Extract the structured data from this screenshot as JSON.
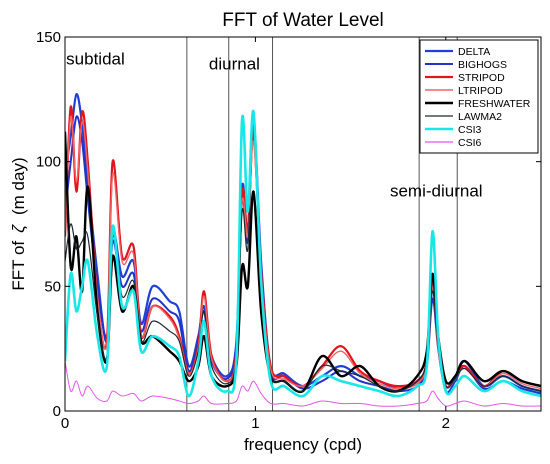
{
  "chart_data": {
    "type": "line",
    "title": "FFT of Water Level",
    "xlabel": "frequency (cpd)",
    "ylabel_prefix": "FFT of",
    "ylabel_symbol": "ζ",
    "ylabel_unit": "(m day)",
    "xlim": [
      0,
      2.5
    ],
    "ylim": [
      0,
      150
    ],
    "xticks": [
      {
        "value": 0,
        "label": "0"
      },
      {
        "value": 1,
        "label": "1"
      },
      {
        "value": 2,
        "label": "2"
      }
    ],
    "yticks": [
      {
        "value": 0,
        "label": "0"
      },
      {
        "value": 50,
        "label": "50"
      },
      {
        "value": 100,
        "label": "100"
      },
      {
        "value": 150,
        "label": "150"
      }
    ],
    "grid": false,
    "legend_position": "top-right",
    "band_lines": [
      0.64,
      0.86,
      1.09,
      1.86,
      2.06
    ],
    "region_labels": [
      {
        "text": "subtidal",
        "x": 0.16,
        "y": 139
      },
      {
        "text": "diurnal",
        "x": 0.89,
        "y": 137
      },
      {
        "text": "semi-diurnal",
        "x": 1.95,
        "y": 86
      }
    ],
    "series": [
      {
        "name": "DELTA",
        "color": "#1f3fd6",
        "width": 2.2,
        "x": [
          0,
          0.03,
          0.06,
          0.09,
          0.12,
          0.17,
          0.22,
          0.25,
          0.3,
          0.36,
          0.4,
          0.46,
          0.55,
          0.6,
          0.65,
          0.7,
          0.73,
          0.77,
          0.85,
          0.9,
          0.93,
          0.96,
          0.99,
          1.03,
          1.08,
          1.15,
          1.25,
          1.35,
          1.45,
          1.55,
          1.65,
          1.75,
          1.85,
          1.9,
          1.93,
          1.96,
          2.0,
          2.05,
          2.1,
          2.2,
          2.3,
          2.4,
          2.5
        ],
        "y": [
          96,
          110,
          127,
          115,
          92,
          55,
          28,
          72,
          54,
          60,
          35,
          50,
          44,
          40,
          18,
          30,
          42,
          22,
          14,
          28,
          90,
          72,
          118,
          60,
          18,
          15,
          10,
          14,
          18,
          14,
          12,
          9,
          12,
          20,
          50,
          28,
          10,
          14,
          20,
          10,
          14,
          10,
          8
        ]
      },
      {
        "name": "BIGHOGS",
        "color": "#2233c8",
        "width": 2.0,
        "x": [
          0,
          0.03,
          0.06,
          0.09,
          0.12,
          0.17,
          0.22,
          0.25,
          0.3,
          0.36,
          0.4,
          0.46,
          0.55,
          0.6,
          0.65,
          0.7,
          0.73,
          0.77,
          0.85,
          0.9,
          0.93,
          0.96,
          0.99,
          1.03,
          1.08,
          1.15,
          1.25,
          1.35,
          1.45,
          1.55,
          1.65,
          1.75,
          1.85,
          1.9,
          1.93,
          1.96,
          2.0,
          2.05,
          2.1,
          2.2,
          2.3,
          2.4,
          2.5
        ],
        "y": [
          80,
          100,
          118,
          108,
          85,
          50,
          30,
          68,
          50,
          55,
          32,
          45,
          40,
          36,
          16,
          28,
          40,
          20,
          13,
          26,
          85,
          68,
          115,
          55,
          16,
          14,
          9,
          12,
          16,
          12,
          10,
          8,
          10,
          18,
          45,
          25,
          8,
          12,
          18,
          9,
          12,
          9,
          7
        ]
      },
      {
        "name": "STRIPOD",
        "color": "#e3141b",
        "width": 2.2,
        "x": [
          0,
          0.03,
          0.06,
          0.09,
          0.12,
          0.17,
          0.22,
          0.25,
          0.3,
          0.36,
          0.4,
          0.46,
          0.55,
          0.6,
          0.65,
          0.7,
          0.73,
          0.77,
          0.85,
          0.9,
          0.93,
          0.96,
          0.99,
          1.03,
          1.08,
          1.15,
          1.25,
          1.35,
          1.45,
          1.55,
          1.65,
          1.75,
          1.85,
          1.9,
          1.93,
          1.96,
          2.0,
          2.05,
          2.1,
          2.2,
          2.3,
          2.4,
          2.5
        ],
        "y": [
          70,
          122,
          88,
          120,
          100,
          45,
          28,
          100,
          62,
          66,
          30,
          42,
          38,
          30,
          15,
          26,
          48,
          22,
          12,
          24,
          88,
          72,
          112,
          56,
          18,
          14,
          10,
          18,
          26,
          16,
          12,
          10,
          12,
          20,
          52,
          26,
          10,
          14,
          18,
          10,
          16,
          12,
          10
        ]
      },
      {
        "name": "LTRIPOD",
        "color": "#f06565",
        "width": 1.4,
        "x": [
          0,
          0.03,
          0.06,
          0.09,
          0.12,
          0.17,
          0.22,
          0.25,
          0.3,
          0.36,
          0.4,
          0.46,
          0.55,
          0.6,
          0.65,
          0.7,
          0.73,
          0.77,
          0.85,
          0.9,
          0.93,
          0.96,
          0.99,
          1.03,
          1.08,
          1.15,
          1.25,
          1.35,
          1.45,
          1.55,
          1.65,
          1.75,
          1.85,
          1.9,
          1.93,
          1.96,
          2.0,
          2.05,
          2.1,
          2.2,
          2.3,
          2.4,
          2.5
        ],
        "y": [
          72,
          118,
          92,
          116,
          96,
          46,
          27,
          95,
          60,
          63,
          30,
          42,
          37,
          29,
          15,
          25,
          46,
          21,
          12,
          23,
          84,
          70,
          108,
          54,
          17,
          13,
          10,
          17,
          24,
          15,
          11,
          9,
          11,
          19,
          50,
          25,
          10,
          13,
          17,
          10,
          15,
          11,
          9
        ]
      },
      {
        "name": "FRESHWATER",
        "color": "#000000",
        "width": 2.4,
        "x": [
          0,
          0.03,
          0.06,
          0.09,
          0.12,
          0.17,
          0.22,
          0.25,
          0.3,
          0.36,
          0.4,
          0.46,
          0.55,
          0.6,
          0.65,
          0.7,
          0.73,
          0.77,
          0.85,
          0.9,
          0.93,
          0.96,
          0.99,
          1.03,
          1.08,
          1.15,
          1.25,
          1.35,
          1.45,
          1.55,
          1.65,
          1.75,
          1.85,
          1.9,
          1.93,
          1.96,
          2.0,
          2.05,
          2.1,
          2.2,
          2.3,
          2.4,
          2.5
        ],
        "y": [
          112,
          58,
          70,
          48,
          90,
          40,
          20,
          62,
          40,
          50,
          28,
          30,
          24,
          20,
          12,
          18,
          30,
          14,
          10,
          18,
          58,
          50,
          88,
          40,
          14,
          12,
          8,
          22,
          14,
          18,
          10,
          8,
          14,
          24,
          55,
          30,
          12,
          14,
          20,
          12,
          16,
          12,
          10
        ]
      },
      {
        "name": "LAWMA2",
        "color": "#1a2a33",
        "width": 1.2,
        "x": [
          0,
          0.03,
          0.06,
          0.09,
          0.12,
          0.17,
          0.22,
          0.25,
          0.3,
          0.36,
          0.4,
          0.46,
          0.55,
          0.6,
          0.65,
          0.7,
          0.73,
          0.77,
          0.85,
          0.9,
          0.93,
          0.96,
          0.99,
          1.03,
          1.08,
          1.15,
          1.25,
          1.35,
          1.45,
          1.55,
          1.65,
          1.75,
          1.85,
          1.9,
          1.93,
          1.96,
          2.0,
          2.05,
          2.1,
          2.2,
          2.3,
          2.4,
          2.5
        ],
        "y": [
          60,
          75,
          65,
          68,
          70,
          38,
          22,
          70,
          46,
          52,
          28,
          36,
          32,
          28,
          14,
          24,
          40,
          18,
          11,
          22,
          80,
          65,
          120,
          50,
          15,
          12,
          8,
          18,
          16,
          14,
          10,
          8,
          12,
          20,
          48,
          26,
          10,
          13,
          17,
          10,
          14,
          10,
          8
        ]
      },
      {
        "name": "CSI3",
        "color": "#19e6e6",
        "width": 2.6,
        "x": [
          0,
          0.03,
          0.06,
          0.09,
          0.12,
          0.17,
          0.22,
          0.25,
          0.3,
          0.36,
          0.4,
          0.46,
          0.55,
          0.6,
          0.65,
          0.7,
          0.73,
          0.77,
          0.85,
          0.9,
          0.93,
          0.96,
          0.99,
          1.03,
          1.08,
          1.15,
          1.25,
          1.35,
          1.45,
          1.55,
          1.65,
          1.75,
          1.85,
          1.9,
          1.93,
          1.96,
          2.0,
          2.05,
          2.1,
          2.2,
          2.3,
          2.4,
          2.5
        ],
        "y": [
          20,
          55,
          40,
          50,
          60,
          30,
          18,
          74,
          42,
          48,
          24,
          30,
          26,
          22,
          6,
          20,
          36,
          14,
          8,
          20,
          117,
          80,
          120,
          52,
          12,
          10,
          6,
          14,
          12,
          10,
          8,
          6,
          10,
          18,
          72,
          30,
          8,
          10,
          14,
          8,
          12,
          8,
          6
        ]
      },
      {
        "name": "CSI6",
        "color": "#e257e8",
        "width": 1.0,
        "x": [
          0,
          0.03,
          0.06,
          0.09,
          0.12,
          0.17,
          0.22,
          0.25,
          0.3,
          0.36,
          0.4,
          0.46,
          0.55,
          0.6,
          0.65,
          0.7,
          0.73,
          0.77,
          0.85,
          0.9,
          0.93,
          0.96,
          0.99,
          1.03,
          1.08,
          1.15,
          1.25,
          1.35,
          1.45,
          1.55,
          1.65,
          1.75,
          1.85,
          1.9,
          1.93,
          1.96,
          2.0,
          2.05,
          2.1,
          2.2,
          2.3,
          2.4,
          2.5
        ],
        "y": [
          20,
          8,
          12,
          6,
          10,
          5,
          4,
          8,
          6,
          7,
          4,
          6,
          5,
          4,
          3,
          4,
          6,
          3,
          3,
          4,
          10,
          8,
          12,
          7,
          3,
          3,
          2,
          4,
          3,
          3,
          2,
          2,
          3,
          4,
          8,
          5,
          2,
          3,
          4,
          2,
          3,
          2,
          2
        ]
      }
    ]
  }
}
